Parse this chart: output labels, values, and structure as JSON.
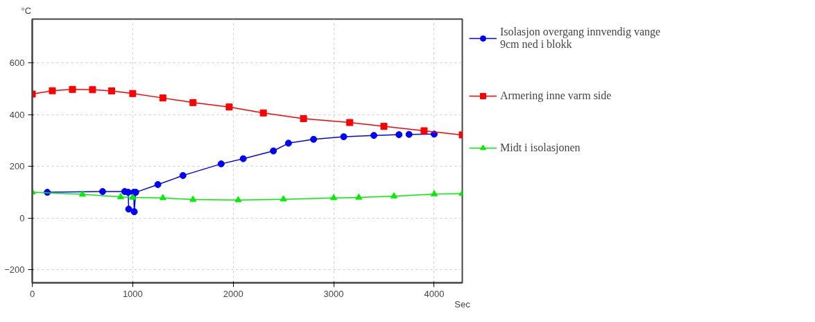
{
  "chart_data": {
    "type": "line",
    "xlabel": "Sec",
    "ylabel": "°C",
    "xlim": [
      0,
      4280
    ],
    "xticks": [
      0,
      1000,
      2000,
      3000,
      4000
    ],
    "ylim": [
      -250,
      770
    ],
    "yticks": [
      -200,
      0,
      200,
      400,
      600
    ],
    "grid": true,
    "legend": "right",
    "line_style": "solid",
    "series": [
      {
        "name": "Isolasjon overgang innvendig vange 9cm ned i blokk",
        "color": "#0000ff",
        "marker": "circle",
        "x": [
          150,
          700,
          920,
          955,
          960,
          970,
          1010,
          1015,
          1030,
          1250,
          1500,
          1880,
          2100,
          2400,
          2550,
          2800,
          3100,
          3400,
          3650,
          3700,
          3750,
          4000
        ],
        "values": [
          100,
          103,
          103,
          100,
          35,
          null,
          100,
          25,
          100,
          130,
          165,
          210,
          230,
          260,
          290,
          305,
          315,
          320,
          323,
          null,
          324,
          325
        ]
      },
      {
        "name": "Armering inne varm side",
        "color": "#ff0000",
        "marker": "square",
        "x": [
          0,
          200,
          400,
          600,
          790,
          1000,
          1300,
          1600,
          1960,
          2300,
          2700,
          3160,
          3500,
          3900,
          4280
        ],
        "values": [
          480,
          493,
          498,
          497,
          492,
          482,
          465,
          447,
          430,
          407,
          385,
          370,
          355,
          338,
          322
        ]
      },
      {
        "name": "Midt i isolasjonen",
        "color": "#00ee00",
        "marker": "triangle",
        "x": [
          0,
          500,
          880,
          1000,
          1300,
          1600,
          2050,
          2500,
          3000,
          3250,
          3600,
          4000,
          4280
        ],
        "values": [
          100,
          92,
          82,
          80,
          78,
          72,
          70,
          73,
          78,
          80,
          85,
          93,
          95
        ]
      }
    ]
  }
}
